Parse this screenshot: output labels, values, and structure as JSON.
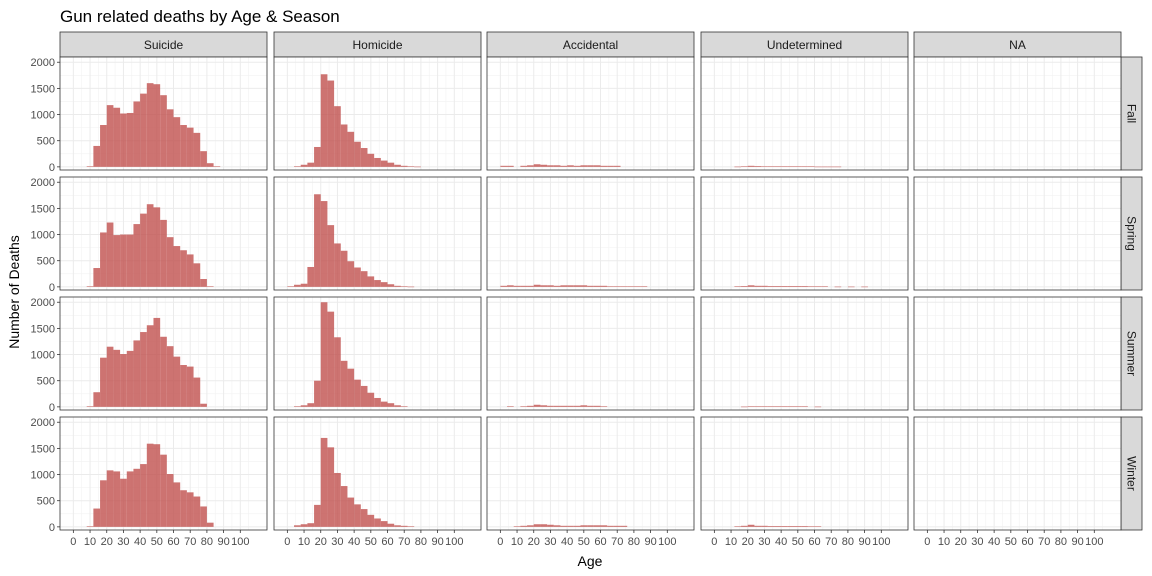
{
  "chart_data": {
    "type": "bar",
    "subtype": "faceted-histogram",
    "title": "Gun related deaths by Age & Season",
    "xlabel": "Age",
    "ylabel": "Number of Deaths",
    "xlim": [
      -8,
      116
    ],
    "ylim": [
      -60,
      2100
    ],
    "x_ticks": [
      0,
      10,
      20,
      30,
      40,
      50,
      60,
      70,
      80,
      90,
      100
    ],
    "y_ticks": [
      0,
      500,
      1000,
      1500,
      2000
    ],
    "bin_width": 4,
    "bin_starts": [
      0,
      4,
      8,
      12,
      16,
      20,
      24,
      28,
      32,
      36,
      40,
      44,
      48,
      52,
      56,
      60,
      64,
      68,
      72,
      76,
      80,
      84,
      88,
      92,
      96,
      100,
      104
    ],
    "columns": [
      "Suicide",
      "Homicide",
      "Accidental",
      "Undetermined",
      "NA"
    ],
    "rows": [
      "Fall",
      "Spring",
      "Summer",
      "Winter"
    ],
    "bar_color": "#c0504d",
    "panel_background": "#ffffff",
    "grid": true,
    "panels": {
      "Fall": {
        "Suicide": [
          0,
          0,
          10,
          400,
          800,
          1180,
          1130,
          1020,
          1030,
          1250,
          1400,
          1600,
          1580,
          1370,
          1100,
          950,
          800,
          750,
          650,
          300,
          70,
          10,
          0,
          0,
          0,
          0,
          0
        ],
        "Homicide": [
          0,
          10,
          40,
          80,
          380,
          1770,
          1650,
          1160,
          810,
          670,
          480,
          360,
          250,
          170,
          120,
          80,
          40,
          20,
          10,
          5,
          0,
          0,
          0,
          0,
          0,
          0,
          0
        ],
        "Accidental": [
          20,
          20,
          0,
          20,
          30,
          50,
          40,
          30,
          30,
          20,
          30,
          20,
          30,
          30,
          30,
          20,
          20,
          20,
          0,
          0,
          0,
          0,
          0,
          0,
          0,
          0,
          0
        ],
        "Undetermined": [
          0,
          0,
          0,
          5,
          10,
          20,
          15,
          10,
          10,
          10,
          10,
          10,
          10,
          10,
          10,
          5,
          5,
          5,
          5,
          0,
          0,
          0,
          0,
          0,
          0,
          0,
          0
        ],
        "NA": [
          0,
          0,
          0,
          0,
          0,
          0,
          0,
          0,
          0,
          0,
          0,
          0,
          0,
          0,
          0,
          0,
          0,
          0,
          0,
          0,
          0,
          0,
          0,
          0,
          0,
          0,
          0
        ]
      },
      "Spring": {
        "Suicide": [
          0,
          0,
          10,
          360,
          1040,
          1230,
          990,
          1000,
          1000,
          1200,
          1400,
          1580,
          1520,
          1280,
          950,
          780,
          700,
          620,
          450,
          150,
          10,
          0,
          0,
          0,
          0,
          0,
          0
        ],
        "Homicide": [
          10,
          40,
          60,
          380,
          1770,
          1640,
          1180,
          830,
          690,
          490,
          370,
          300,
          200,
          130,
          90,
          50,
          20,
          10,
          5,
          0,
          0,
          0,
          0,
          0,
          0,
          0,
          0
        ],
        "Accidental": [
          20,
          30,
          20,
          20,
          20,
          40,
          30,
          30,
          20,
          30,
          30,
          30,
          30,
          20,
          20,
          20,
          10,
          10,
          10,
          10,
          10,
          10,
          0,
          0,
          0,
          0,
          0
        ],
        "Undetermined": [
          0,
          0,
          0,
          10,
          15,
          30,
          20,
          20,
          15,
          15,
          15,
          15,
          15,
          15,
          10,
          10,
          10,
          0,
          5,
          0,
          5,
          0,
          5,
          0,
          0,
          0,
          0
        ],
        "NA": [
          0,
          0,
          0,
          0,
          0,
          0,
          0,
          0,
          0,
          0,
          0,
          0,
          0,
          0,
          0,
          0,
          0,
          0,
          0,
          0,
          0,
          0,
          0,
          0,
          0,
          0,
          0
        ]
      },
      "Summer": {
        "Suicide": [
          0,
          0,
          10,
          280,
          940,
          1150,
          1090,
          1010,
          1070,
          1270,
          1430,
          1560,
          1700,
          1340,
          1160,
          960,
          800,
          770,
          560,
          60,
          0,
          0,
          0,
          0,
          0,
          0,
          0
        ],
        "Homicide": [
          0,
          10,
          30,
          70,
          500,
          2000,
          1820,
          1330,
          880,
          730,
          520,
          400,
          270,
          170,
          100,
          70,
          30,
          10,
          0,
          0,
          0,
          0,
          0,
          0,
          0,
          0,
          0
        ],
        "Accidental": [
          0,
          10,
          0,
          10,
          20,
          40,
          30,
          20,
          20,
          20,
          20,
          20,
          30,
          20,
          20,
          10,
          0,
          0,
          0,
          0,
          0,
          0,
          0,
          0,
          0,
          0,
          0
        ],
        "Undetermined": [
          0,
          0,
          0,
          0,
          5,
          10,
          10,
          10,
          10,
          10,
          10,
          10,
          10,
          10,
          0,
          5,
          0,
          0,
          0,
          0,
          0,
          0,
          0,
          0,
          0,
          0,
          0
        ],
        "NA": [
          0,
          0,
          0,
          0,
          0,
          0,
          0,
          0,
          0,
          0,
          0,
          0,
          0,
          0,
          0,
          0,
          0,
          0,
          0,
          0,
          0,
          0,
          0,
          0,
          0,
          0,
          0
        ]
      },
      "Winter": {
        "Suicide": [
          0,
          0,
          10,
          350,
          890,
          1080,
          1060,
          920,
          1060,
          1110,
          1200,
          1590,
          1580,
          1380,
          1010,
          850,
          700,
          660,
          580,
          390,
          80,
          0,
          0,
          0,
          0,
          0,
          0
        ],
        "Homicide": [
          0,
          30,
          50,
          70,
          420,
          1700,
          1520,
          1030,
          780,
          560,
          430,
          340,
          230,
          160,
          110,
          60,
          30,
          20,
          10,
          0,
          0,
          0,
          0,
          0,
          0,
          0,
          0
        ],
        "Accidental": [
          0,
          0,
          10,
          20,
          30,
          50,
          50,
          40,
          30,
          20,
          20,
          20,
          30,
          30,
          30,
          30,
          20,
          20,
          20,
          0,
          0,
          0,
          0,
          0,
          0,
          0,
          0
        ],
        "Undetermined": [
          0,
          0,
          0,
          10,
          20,
          40,
          20,
          20,
          15,
          15,
          15,
          15,
          15,
          15,
          10,
          10,
          0,
          0,
          0,
          0,
          0,
          0,
          0,
          0,
          0,
          0,
          0
        ],
        "NA": [
          0,
          0,
          0,
          0,
          0,
          0,
          0,
          0,
          0,
          0,
          0,
          0,
          0,
          0,
          0,
          0,
          0,
          0,
          0,
          0,
          0,
          0,
          0,
          0,
          0,
          0,
          0
        ]
      }
    }
  }
}
